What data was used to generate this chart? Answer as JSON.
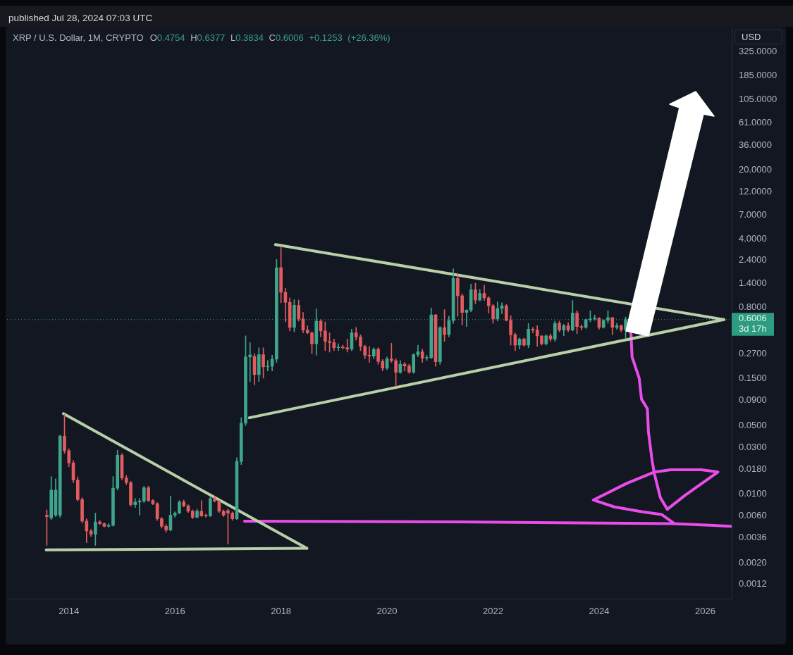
{
  "chart_data": {
    "type": "candlestick",
    "title": "XRP / U.S. Dollar, 1M, CRYPTO",
    "subtitle": "O0.4754 H0.6377 L0.3834 C0.6006 +0.1253 (+26.36%)",
    "ylabel": "USD",
    "annotations": [
      "published Jul 28, 2024 07:03 UTC",
      "3d 17h"
    ],
    "x": [
      "2013-08",
      "2013-09",
      "2013-10",
      "2013-11",
      "2013-12",
      "2014-01",
      "2014-02",
      "2014-03",
      "2014-04",
      "2014-05",
      "2014-06",
      "2014-07",
      "2014-08",
      "2014-09",
      "2014-10",
      "2014-11",
      "2014-12",
      "2015-01",
      "2015-02",
      "2015-03",
      "2015-04",
      "2015-05",
      "2015-06",
      "2015-07",
      "2015-08",
      "2015-09",
      "2015-10",
      "2015-11",
      "2015-12",
      "2016-01",
      "2016-02",
      "2016-03",
      "2016-04",
      "2016-05",
      "2016-06",
      "2016-07",
      "2016-08",
      "2016-09",
      "2016-10",
      "2016-11",
      "2016-12",
      "2017-01",
      "2017-02",
      "2017-03",
      "2017-04",
      "2017-05",
      "2017-06",
      "2017-07",
      "2017-08",
      "2017-09",
      "2017-10",
      "2017-11",
      "2017-12",
      "2018-01",
      "2018-02",
      "2018-03",
      "2018-04",
      "2018-05",
      "2018-06",
      "2018-07",
      "2018-08",
      "2018-09",
      "2018-10",
      "2018-11",
      "2018-12",
      "2019-01",
      "2019-02",
      "2019-03",
      "2019-04",
      "2019-05",
      "2019-06",
      "2019-07",
      "2019-08",
      "2019-09",
      "2019-10",
      "2019-11",
      "2019-12",
      "2020-01",
      "2020-02",
      "2020-03",
      "2020-04",
      "2020-05",
      "2020-06",
      "2020-07",
      "2020-08",
      "2020-09",
      "2020-10",
      "2020-11",
      "2020-12",
      "2021-01",
      "2021-02",
      "2021-03",
      "2021-04",
      "2021-05",
      "2021-06",
      "2021-07",
      "2021-08",
      "2021-09",
      "2021-10",
      "2021-11",
      "2021-12",
      "2022-01",
      "2022-02",
      "2022-03",
      "2022-04",
      "2022-05",
      "2022-06",
      "2022-07",
      "2022-08",
      "2022-09",
      "2022-10",
      "2022-11",
      "2022-12",
      "2023-01",
      "2023-02",
      "2023-03",
      "2023-04",
      "2023-05",
      "2023-06",
      "2023-07",
      "2023-08",
      "2023-09",
      "2023-10",
      "2023-11",
      "2023-12",
      "2024-01",
      "2024-02",
      "2024-03",
      "2024-04",
      "2024-05",
      "2024-06",
      "2024-07"
    ],
    "ohlc": [
      [
        0.0061,
        0.0069,
        0.003,
        0.0059
      ],
      [
        0.0057,
        0.0151,
        0.0055,
        0.011
      ],
      [
        0.0061,
        0.0143,
        0.0059,
        0.011
      ],
      [
        0.0061,
        0.04,
        0.0058,
        0.039
      ],
      [
        0.039,
        0.065,
        0.026,
        0.0277
      ],
      [
        0.0277,
        0.029,
        0.019,
        0.0208
      ],
      [
        0.0208,
        0.022,
        0.013,
        0.0139
      ],
      [
        0.0139,
        0.015,
        0.0085,
        0.0088
      ],
      [
        0.0088,
        0.0092,
        0.0051,
        0.0053
      ],
      [
        0.0053,
        0.0056,
        0.0032,
        0.0042
      ],
      [
        0.0042,
        0.0044,
        0.0037,
        0.0039
      ],
      [
        0.0039,
        0.0064,
        0.003,
        0.0052
      ],
      [
        0.0052,
        0.0054,
        0.0049,
        0.005
      ],
      [
        0.005,
        0.0051,
        0.0046,
        0.0047
      ],
      [
        0.0047,
        0.005,
        0.0046,
        0.0048
      ],
      [
        0.0048,
        0.0151,
        0.0047,
        0.0115
      ],
      [
        0.0115,
        0.028,
        0.011,
        0.0249
      ],
      [
        0.0249,
        0.026,
        0.014,
        0.0146
      ],
      [
        0.0146,
        0.0155,
        0.0125,
        0.0131
      ],
      [
        0.0131,
        0.0135,
        0.0075,
        0.0078
      ],
      [
        0.0078,
        0.009,
        0.0073,
        0.0083
      ],
      [
        0.0083,
        0.009,
        0.0061,
        0.0085
      ],
      [
        0.0085,
        0.012,
        0.0082,
        0.0116
      ],
      [
        0.0116,
        0.012,
        0.0084,
        0.0086
      ],
      [
        0.0086,
        0.0088,
        0.0078,
        0.008
      ],
      [
        0.008,
        0.0082,
        0.0054,
        0.0056
      ],
      [
        0.0056,
        0.0058,
        0.0045,
        0.0047
      ],
      [
        0.0047,
        0.0049,
        0.0041,
        0.0043
      ],
      [
        0.0043,
        0.0095,
        0.0042,
        0.0061
      ],
      [
        0.0061,
        0.0066,
        0.0058,
        0.0064
      ],
      [
        0.0064,
        0.0086,
        0.0063,
        0.0083
      ],
      [
        0.0083,
        0.0087,
        0.0074,
        0.0076
      ],
      [
        0.0076,
        0.0078,
        0.0065,
        0.0067
      ],
      [
        0.0067,
        0.0069,
        0.0056,
        0.0058
      ],
      [
        0.0058,
        0.007,
        0.0057,
        0.0067
      ],
      [
        0.0067,
        0.0086,
        0.0059,
        0.006
      ],
      [
        0.0061,
        0.0063,
        0.0058,
        0.006
      ],
      [
        0.006,
        0.0093,
        0.0059,
        0.009
      ],
      [
        0.009,
        0.0095,
        0.0083,
        0.0085
      ],
      [
        0.0085,
        0.0087,
        0.0065,
        0.0067
      ],
      [
        0.0067,
        0.0069,
        0.0059,
        0.0061
      ],
      [
        0.0068,
        0.007,
        0.0031,
        0.0064
      ],
      [
        0.0064,
        0.0066,
        0.0054,
        0.0056
      ],
      [
        0.0056,
        0.0235,
        0.0055,
        0.0215
      ],
      [
        0.0215,
        0.06,
        0.02,
        0.0528
      ],
      [
        0.0528,
        0.41,
        0.05,
        0.25
      ],
      [
        0.25,
        0.35,
        0.14,
        0.262
      ],
      [
        0.253,
        0.27,
        0.13,
        0.165
      ],
      [
        0.165,
        0.31,
        0.14,
        0.264
      ],
      [
        0.264,
        0.31,
        0.152,
        0.198
      ],
      [
        0.198,
        0.23,
        0.18,
        0.201
      ],
      [
        0.201,
        0.26,
        0.18,
        0.237
      ],
      [
        0.237,
        2.46,
        0.22,
        2.03
      ],
      [
        2.03,
        3.33,
        0.89,
        1.14
      ],
      [
        1.14,
        1.25,
        0.57,
        0.9
      ],
      [
        0.9,
        1.0,
        0.46,
        0.5
      ],
      [
        0.5,
        0.96,
        0.45,
        0.84
      ],
      [
        0.84,
        0.95,
        0.58,
        0.61
      ],
      [
        0.61,
        0.71,
        0.44,
        0.47
      ],
      [
        0.47,
        0.52,
        0.43,
        0.44
      ],
      [
        0.44,
        0.45,
        0.27,
        0.34
      ],
      [
        0.34,
        0.77,
        0.26,
        0.58
      ],
      [
        0.58,
        0.6,
        0.4,
        0.46
      ],
      [
        0.46,
        0.57,
        0.29,
        0.36
      ],
      [
        0.36,
        0.44,
        0.28,
        0.35
      ],
      [
        0.35,
        0.38,
        0.29,
        0.31
      ],
      [
        0.31,
        0.34,
        0.29,
        0.315
      ],
      [
        0.315,
        0.33,
        0.3,
        0.31
      ],
      [
        0.31,
        0.38,
        0.28,
        0.3
      ],
      [
        0.3,
        0.48,
        0.29,
        0.44
      ],
      [
        0.44,
        0.5,
        0.37,
        0.4
      ],
      [
        0.4,
        0.42,
        0.29,
        0.32
      ],
      [
        0.32,
        0.33,
        0.24,
        0.26
      ],
      [
        0.26,
        0.32,
        0.22,
        0.255
      ],
      [
        0.255,
        0.31,
        0.24,
        0.3
      ],
      [
        0.3,
        0.31,
        0.21,
        0.225
      ],
      [
        0.225,
        0.235,
        0.18,
        0.192
      ],
      [
        0.192,
        0.25,
        0.185,
        0.239
      ],
      [
        0.239,
        0.345,
        0.22,
        0.229
      ],
      [
        0.229,
        0.24,
        0.125,
        0.174
      ],
      [
        0.174,
        0.23,
        0.17,
        0.211
      ],
      [
        0.211,
        0.22,
        0.18,
        0.202
      ],
      [
        0.202,
        0.21,
        0.17,
        0.175
      ],
      [
        0.175,
        0.27,
        0.17,
        0.264
      ],
      [
        0.264,
        0.329,
        0.25,
        0.282
      ],
      [
        0.282,
        0.3,
        0.22,
        0.243
      ],
      [
        0.243,
        0.26,
        0.23,
        0.245
      ],
      [
        0.245,
        0.79,
        0.24,
        0.67
      ],
      [
        0.67,
        0.68,
        0.2,
        0.223
      ],
      [
        0.223,
        0.51,
        0.21,
        0.497
      ],
      [
        0.497,
        0.76,
        0.36,
        0.423
      ],
      [
        0.423,
        0.65,
        0.4,
        0.587
      ],
      [
        0.587,
        1.98,
        0.55,
        1.58
      ],
      [
        1.58,
        1.75,
        0.65,
        1.05
      ],
      [
        1.05,
        1.1,
        0.53,
        0.71
      ],
      [
        0.71,
        0.76,
        0.51,
        0.75
      ],
      [
        0.75,
        1.38,
        0.72,
        1.21
      ],
      [
        1.21,
        1.41,
        0.87,
        0.95
      ],
      [
        0.95,
        1.22,
        0.93,
        1.11
      ],
      [
        1.11,
        1.35,
        0.94,
        1.0
      ],
      [
        1.0,
        1.03,
        0.7,
        0.83
      ],
      [
        0.83,
        0.86,
        0.55,
        0.61
      ],
      [
        0.61,
        0.91,
        0.58,
        0.78
      ],
      [
        0.78,
        0.89,
        0.69,
        0.83
      ],
      [
        0.83,
        0.86,
        0.58,
        0.59
      ],
      [
        0.59,
        0.66,
        0.33,
        0.42
      ],
      [
        0.42,
        0.44,
        0.29,
        0.33
      ],
      [
        0.33,
        0.39,
        0.3,
        0.38
      ],
      [
        0.38,
        0.39,
        0.32,
        0.33
      ],
      [
        0.33,
        0.55,
        0.31,
        0.48
      ],
      [
        0.48,
        0.5,
        0.44,
        0.47
      ],
      [
        0.47,
        0.52,
        0.32,
        0.41
      ],
      [
        0.41,
        0.41,
        0.33,
        0.34
      ],
      [
        0.34,
        0.42,
        0.33,
        0.41
      ],
      [
        0.41,
        0.43,
        0.36,
        0.38
      ],
      [
        0.38,
        0.58,
        0.36,
        0.55
      ],
      [
        0.55,
        0.58,
        0.45,
        0.47
      ],
      [
        0.47,
        0.54,
        0.41,
        0.52
      ],
      [
        0.52,
        0.56,
        0.45,
        0.47
      ],
      [
        0.47,
        0.94,
        0.46,
        0.7
      ],
      [
        0.7,
        0.74,
        0.43,
        0.51
      ],
      [
        0.51,
        0.53,
        0.47,
        0.5
      ],
      [
        0.5,
        0.61,
        0.49,
        0.6
      ],
      [
        0.6,
        0.74,
        0.57,
        0.61
      ],
      [
        0.61,
        0.67,
        0.59,
        0.62
      ],
      [
        0.62,
        0.63,
        0.48,
        0.5
      ],
      [
        0.5,
        0.6,
        0.49,
        0.59
      ],
      [
        0.59,
        0.74,
        0.55,
        0.63
      ],
      [
        0.63,
        0.63,
        0.42,
        0.5
      ],
      [
        0.5,
        0.55,
        0.48,
        0.52
      ],
      [
        0.52,
        0.53,
        0.45,
        0.47
      ],
      [
        0.4754,
        0.6377,
        0.3834,
        0.6006
      ]
    ],
    "colors": [
      "#e05c5f",
      "#3fa68c",
      "#3fa68c",
      "#3fa68c",
      "#e05c5f",
      "#e05c5f",
      "#e05c5f",
      "#e05c5f",
      "#e05c5f",
      "#e05c5f",
      "#e05c5f",
      "#3fa68c",
      "#e05c5f",
      "#e05c5f",
      "#3fa68c",
      "#3fa68c",
      "#3fa68c",
      "#e05c5f",
      "#e05c5f",
      "#e05c5f",
      "#3fa68c",
      "#3fa68c",
      "#3fa68c",
      "#e05c5f",
      "#e05c5f",
      "#e05c5f",
      "#e05c5f",
      "#e05c5f",
      "#3fa68c",
      "#3fa68c",
      "#3fa68c",
      "#e05c5f",
      "#e05c5f",
      "#e05c5f",
      "#3fa68c",
      "#e05c5f",
      "#e05c5f",
      "#3fa68c",
      "#e05c5f",
      "#e05c5f",
      "#e05c5f",
      "#e05c5f",
      "#e05c5f",
      "#3fa68c",
      "#3fa68c",
      "#3fa68c",
      "#3fa68c",
      "#e05c5f",
      "#3fa68c",
      "#e05c5f",
      "#3fa68c",
      "#3fa68c",
      "#3fa68c",
      "#e05c5f",
      "#e05c5f",
      "#e05c5f",
      "#3fa68c",
      "#e05c5f",
      "#e05c5f",
      "#e05c5f",
      "#e05c5f",
      "#3fa68c",
      "#e05c5f",
      "#e05c5f",
      "#e05c5f",
      "#e05c5f",
      "#3fa68c",
      "#e05c5f",
      "#e05c5f",
      "#3fa68c",
      "#e05c5f",
      "#e05c5f",
      "#e05c5f",
      "#e05c5f",
      "#3fa68c",
      "#e05c5f",
      "#e05c5f",
      "#3fa68c",
      "#e05c5f",
      "#e05c5f",
      "#3fa68c",
      "#e05c5f",
      "#e05c5f",
      "#3fa68c",
      "#3fa68c",
      "#e05c5f",
      "#3fa68c",
      "#3fa68c",
      "#e05c5f",
      "#3fa68c",
      "#e05c5f",
      "#3fa68c",
      "#3fa68c",
      "#e05c5f",
      "#e05c5f",
      "#3fa68c",
      "#3fa68c",
      "#e05c5f",
      "#3fa68c",
      "#e05c5f",
      "#e05c5f",
      "#e05c5f",
      "#3fa68c",
      "#3fa68c",
      "#e05c5f",
      "#e05c5f",
      "#e05c5f",
      "#3fa68c",
      "#e05c5f",
      "#3fa68c",
      "#e05c5f",
      "#e05c5f",
      "#e05c5f",
      "#3fa68c",
      "#e05c5f",
      "#3fa68c",
      "#e05c5f",
      "#3fa68c",
      "#e05c5f",
      "#3fa68c",
      "#e05c5f",
      "#e05c5f",
      "#3fa68c",
      "#3fa68c",
      "#3fa68c",
      "#e05c5f",
      "#3fa68c",
      "#3fa68c",
      "#e05c5f",
      "#3fa68c",
      "#e05c5f",
      "#3fa68c"
    ],
    "series": [
      {
        "type": "line",
        "color": "#b7d0a8",
        "x": [
          "2013-11-24",
          "2018-06-27"
        ],
        "values": [
          0.066,
          0.0028
        ]
      },
      {
        "type": "line",
        "color": "#b7d0a8",
        "x": [
          "2013-07-27",
          "2018-06-27"
        ],
        "values": [
          0.0027,
          0.0028
        ]
      },
      {
        "type": "line",
        "color": "#b7d0a8",
        "x": [
          "2017-11-24",
          "2026-05-08"
        ],
        "values": [
          3.49,
          0.6
        ]
      },
      {
        "type": "line",
        "color": "#b7d0a8",
        "x": [
          "2017-05-27",
          "2026-05-08"
        ],
        "values": [
          0.06,
          0.6
        ]
      },
      {
        "type": "line",
        "color": "#e94de9",
        "x": [
          "2024-08-07",
          "2024-08-15",
          "2024-10-03",
          "2024-10-19",
          "2024-11-29",
          "2024-12-06",
          "2024-12-31",
          "2025-01-17",
          "2025-02-27",
          "2025-04-14",
          "2025-08-14",
          "2026-03-28",
          "2025-12-05",
          "2025-05-08",
          "2025-01-17",
          "2024-07-05",
          "2023-11-22",
          "2024-04-15",
          "2024-10-27",
          "2025-03-05",
          "2025-05-25"
        ],
        "values": [
          0.445,
          0.25,
          0.152,
          0.093,
          0.074,
          0.043,
          0.022,
          0.016,
          0.0092,
          0.007,
          0.0097,
          0.0168,
          0.0177,
          0.0177,
          0.0168,
          0.0128,
          0.0087,
          0.0074,
          0.0066,
          0.0062,
          0.0051
        ]
      },
      {
        "type": "line",
        "color": "#e94de9",
        "x": [
          "2017-04-24",
          "2021-05-13",
          "2025-05-25",
          "2026-06-28"
        ],
        "values": [
          0.0053,
          0.0052,
          0.005,
          0.0047
        ]
      }
    ],
    "log": true,
    "ylim": [
      0.00086,
      560
    ],
    "yticks": [
      0.0012,
      {
        "value": 0.002,
        "label": "0.0020"
      },
      0.0036,
      {
        "value": 0.006,
        "label": "0.0060"
      },
      {
        "value": 0.01,
        "label": "0.0100"
      },
      {
        "value": 0.018,
        "label": "0.0180"
      },
      {
        "value": 0.03,
        "label": "0.0300"
      },
      {
        "value": 0.05,
        "label": "0.0500"
      },
      {
        "value": 0.09,
        "label": "0.0900"
      },
      {
        "value": 0.15,
        "label": "0.1500"
      },
      {
        "value": 0.27,
        "label": "0.2700"
      },
      {
        "value": 0.8,
        "label": "0.8000"
      },
      {
        "value": 1.4,
        "label": "1.4000"
      },
      {
        "value": 2.4,
        "label": "2.4000"
      },
      {
        "value": 4,
        "label": "4.0000"
      },
      {
        "value": 7,
        "label": "7.0000"
      },
      {
        "value": 12,
        "label": "12.0000"
      },
      {
        "value": 20,
        "label": "20.0000"
      },
      {
        "value": 36,
        "label": "36.0000"
      },
      {
        "value": 61,
        "label": "61.0000"
      },
      {
        "value": 105,
        "label": "105.0000"
      },
      {
        "value": 185,
        "label": "185.0000"
      },
      {
        "value": 325,
        "label": "325.0000"
      }
    ],
    "xlim": [
      "2012-11",
      "2026-07"
    ],
    "xticks": [
      "2014",
      "2016",
      "2018",
      "2020",
      "2022",
      "2024",
      "2026"
    ],
    "ref_lines": [
      {
        "axis": "y",
        "value": 0.6006,
        "label": "0.6006",
        "color": "#2e9c80",
        "line_style": "dotted"
      }
    ]
  }
}
